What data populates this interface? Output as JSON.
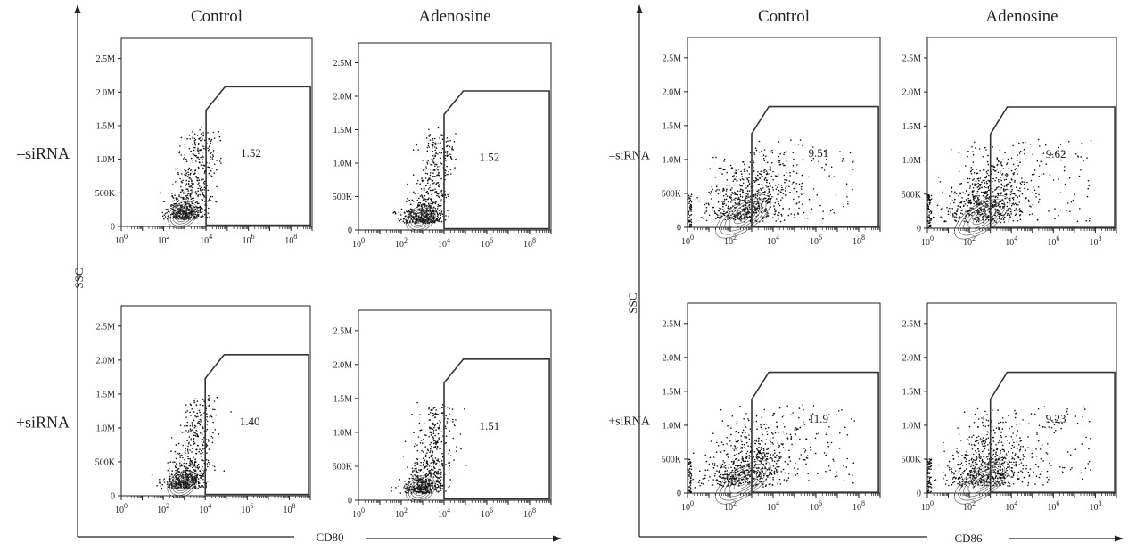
{
  "chart_data": [
    {
      "type": "scatter",
      "marker": "CD80",
      "xlabel": "CD80",
      "ylabel": "SSC",
      "x_scale": "log",
      "xlim": [
        1,
        1000000000
      ],
      "ylim": [
        0,
        2800000
      ],
      "x_ticks": [
        "10^0",
        "10^2",
        "10^4",
        "10^6",
        "10^8"
      ],
      "y_ticks": [
        "0",
        "500K",
        "1.0M",
        "1.5M",
        "2.0M",
        "2.5M"
      ],
      "columns": [
        "Control",
        "Adenosine"
      ],
      "rows": [
        "–siRNA",
        "+siRNA"
      ],
      "panels": [
        {
          "row": "–siRNA",
          "column": "Control",
          "gate_percent": "1.52"
        },
        {
          "row": "–siRNA",
          "column": "Adenosine",
          "gate_percent": "1.52"
        },
        {
          "row": "+siRNA",
          "column": "Control",
          "gate_percent": "1.40"
        },
        {
          "row": "+siRNA",
          "column": "Adenosine",
          "gate_percent": "1.51"
        }
      ]
    },
    {
      "type": "scatter",
      "marker": "CD86",
      "xlabel": "CD86",
      "ylabel": "SSC",
      "x_scale": "log",
      "xlim": [
        1,
        1000000000
      ],
      "ylim": [
        0,
        2800000
      ],
      "x_ticks": [
        "10^0",
        "10^2",
        "10^4",
        "10^6",
        "10^8"
      ],
      "y_ticks": [
        "0",
        "500K",
        "1.0M",
        "1.5M",
        "2.0M",
        "2.5M"
      ],
      "columns": [
        "Control",
        "Adenosine"
      ],
      "rows": [
        "–siRNA",
        "+siRNA"
      ],
      "panels": [
        {
          "row": "–siRNA",
          "column": "Control",
          "gate_percent": "9.51"
        },
        {
          "row": "–siRNA",
          "column": "Adenosine",
          "gate_percent": "9.62"
        },
        {
          "row": "+siRNA",
          "column": "Control",
          "gate_percent": "11.9"
        },
        {
          "row": "+siRNA",
          "column": "Adenosine",
          "gate_percent": "9.23"
        }
      ]
    }
  ]
}
